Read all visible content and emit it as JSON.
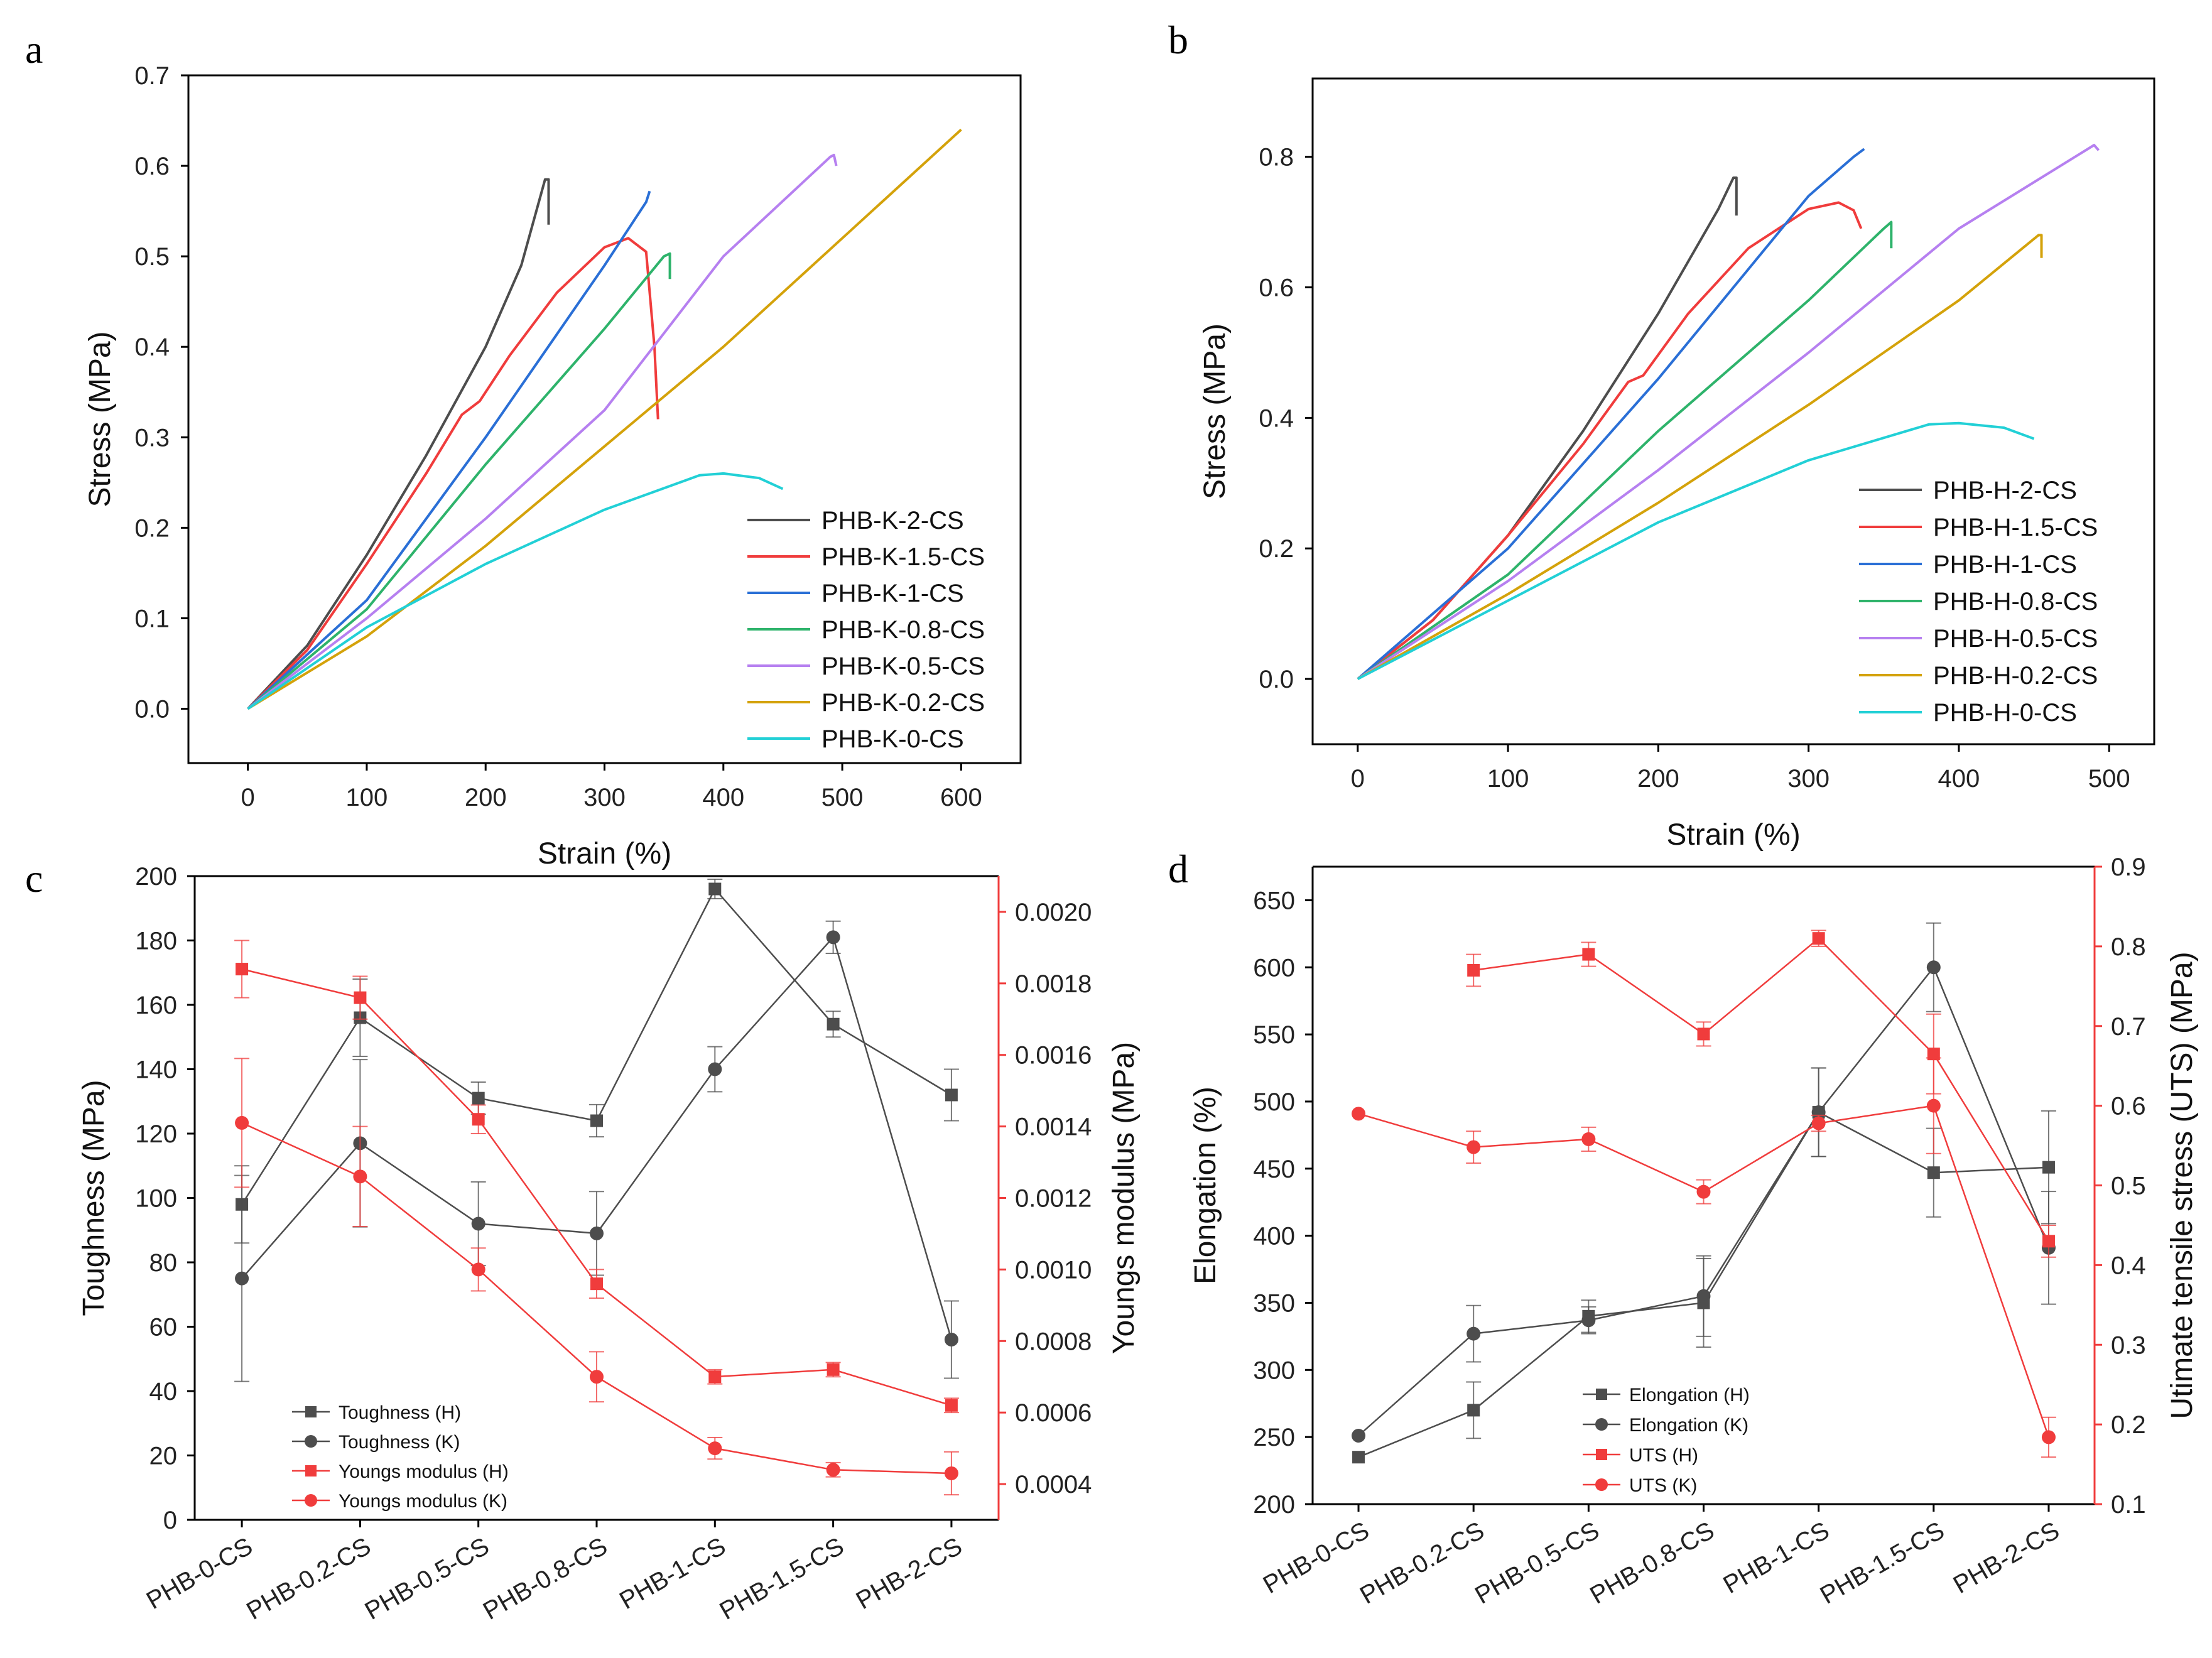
{
  "colors": {
    "black": "#4d4d4d",
    "red": "#f03c3c",
    "blue": "#2a6fd6",
    "green": "#2eb36b",
    "violet": "#b680f0",
    "gold": "#d4a20a",
    "cyan": "#22d0d6",
    "axis": "#000000",
    "right_axis": "#f03c3c"
  },
  "chart_data": [
    {
      "panel": "a",
      "type": "line",
      "title": "",
      "xlabel": "Strain (%)",
      "ylabel": "Stress (MPa)",
      "xlim": [
        -50,
        650
      ],
      "ylim": [
        -0.06,
        0.7
      ],
      "xticks": [
        0,
        100,
        200,
        300,
        400,
        500,
        600
      ],
      "yticks": [
        0.0,
        0.1,
        0.2,
        0.3,
        0.4,
        0.5,
        0.6,
        0.7
      ],
      "ytick_labels": [
        "0.0",
        "0.1",
        "0.2",
        "0.3",
        "0.4",
        "0.5",
        "0.6",
        "0.7"
      ],
      "legend_position": "bottom-right",
      "series": [
        {
          "name": "PHB-K-2-CS",
          "color": "black",
          "points": [
            [
              0,
              0
            ],
            [
              50,
              0.07
            ],
            [
              100,
              0.17
            ],
            [
              150,
              0.28
            ],
            [
              200,
              0.4
            ],
            [
              230,
              0.49
            ],
            [
              250,
              0.585
            ],
            [
              253,
              0.585
            ],
            [
              253,
              0.535
            ]
          ]
        },
        {
          "name": "PHB-K-1.5-CS",
          "color": "red",
          "points": [
            [
              0,
              0
            ],
            [
              50,
              0.065
            ],
            [
              100,
              0.16
            ],
            [
              150,
              0.26
            ],
            [
              180,
              0.325
            ],
            [
              195,
              0.34
            ],
            [
              220,
              0.39
            ],
            [
              260,
              0.46
            ],
            [
              300,
              0.51
            ],
            [
              320,
              0.52
            ],
            [
              335,
              0.505
            ],
            [
              342,
              0.4
            ],
            [
              345,
              0.32
            ]
          ]
        },
        {
          "name": "PHB-K-1-CS",
          "color": "blue",
          "points": [
            [
              0,
              0
            ],
            [
              100,
              0.12
            ],
            [
              200,
              0.3
            ],
            [
              300,
              0.49
            ],
            [
              335,
              0.56
            ],
            [
              338,
              0.572
            ]
          ]
        },
        {
          "name": "PHB-K-0.8-CS",
          "color": "green",
          "points": [
            [
              0,
              0
            ],
            [
              100,
              0.11
            ],
            [
              200,
              0.27
            ],
            [
              300,
              0.42
            ],
            [
              350,
              0.5
            ],
            [
              355,
              0.503
            ],
            [
              355,
              0.475
            ]
          ]
        },
        {
          "name": "PHB-K-0.5-CS",
          "color": "violet",
          "points": [
            [
              0,
              0
            ],
            [
              100,
              0.1
            ],
            [
              200,
              0.21
            ],
            [
              300,
              0.33
            ],
            [
              400,
              0.5
            ],
            [
              490,
              0.61
            ],
            [
              493,
              0.612
            ],
            [
              495,
              0.6
            ]
          ]
        },
        {
          "name": "PHB-K-0.2-CS",
          "color": "gold",
          "points": [
            [
              0,
              0
            ],
            [
              100,
              0.08
            ],
            [
              200,
              0.18
            ],
            [
              300,
              0.29
            ],
            [
              400,
              0.4
            ],
            [
              500,
              0.52
            ],
            [
              600,
              0.64
            ]
          ]
        },
        {
          "name": "PHB-K-0-CS",
          "color": "cyan",
          "points": [
            [
              0,
              0
            ],
            [
              100,
              0.09
            ],
            [
              200,
              0.16
            ],
            [
              300,
              0.22
            ],
            [
              380,
              0.258
            ],
            [
              400,
              0.26
            ],
            [
              430,
              0.255
            ],
            [
              450,
              0.243
            ]
          ]
        }
      ]
    },
    {
      "panel": "b",
      "type": "line",
      "title": "",
      "xlabel": "Strain (%)",
      "ylabel": "Stress (MPa)",
      "xlim": [
        -30,
        530
      ],
      "ylim": [
        -0.1,
        0.92
      ],
      "xticks": [
        0,
        100,
        200,
        300,
        400,
        500
      ],
      "yticks": [
        0.0,
        0.2,
        0.4,
        0.6,
        0.8
      ],
      "ytick_labels": [
        "0.0",
        "0.2",
        "0.4",
        "0.6",
        "0.8"
      ],
      "legend_position": "bottom-right",
      "series": [
        {
          "name": "PHB-H-2-CS",
          "color": "black",
          "points": [
            [
              0,
              0
            ],
            [
              50,
              0.09
            ],
            [
              100,
              0.22
            ],
            [
              150,
              0.38
            ],
            [
              200,
              0.56
            ],
            [
              240,
              0.72
            ],
            [
              250,
              0.768
            ],
            [
              252,
              0.768
            ],
            [
              252,
              0.71
            ]
          ]
        },
        {
          "name": "PHB-H-1.5-CS",
          "color": "red",
          "points": [
            [
              0,
              0
            ],
            [
              50,
              0.09
            ],
            [
              100,
              0.22
            ],
            [
              150,
              0.36
            ],
            [
              180,
              0.455
            ],
            [
              190,
              0.465
            ],
            [
              220,
              0.56
            ],
            [
              260,
              0.66
            ],
            [
              300,
              0.72
            ],
            [
              320,
              0.73
            ],
            [
              330,
              0.718
            ],
            [
              335,
              0.69
            ]
          ]
        },
        {
          "name": "PHB-H-1-CS",
          "color": "blue",
          "points": [
            [
              0,
              0
            ],
            [
              100,
              0.2
            ],
            [
              200,
              0.46
            ],
            [
              300,
              0.74
            ],
            [
              330,
              0.8
            ],
            [
              337,
              0.812
            ]
          ]
        },
        {
          "name": "PHB-H-0.8-CS",
          "color": "green",
          "points": [
            [
              0,
              0
            ],
            [
              100,
              0.16
            ],
            [
              200,
              0.38
            ],
            [
              300,
              0.58
            ],
            [
              350,
              0.69
            ],
            [
              355,
              0.7
            ],
            [
              355,
              0.66
            ]
          ]
        },
        {
          "name": "PHB-H-0.5-CS",
          "color": "violet",
          "points": [
            [
              0,
              0
            ],
            [
              100,
              0.15
            ],
            [
              200,
              0.32
            ],
            [
              300,
              0.5
            ],
            [
              400,
              0.69
            ],
            [
              490,
              0.818
            ],
            [
              493,
              0.81
            ]
          ]
        },
        {
          "name": "PHB-H-0.2-CS",
          "color": "gold",
          "points": [
            [
              0,
              0
            ],
            [
              100,
              0.13
            ],
            [
              200,
              0.27
            ],
            [
              300,
              0.42
            ],
            [
              400,
              0.58
            ],
            [
              453,
              0.68
            ],
            [
              455,
              0.68
            ],
            [
              455,
              0.645
            ]
          ]
        },
        {
          "name": "PHB-H-0-CS",
          "color": "cyan",
          "points": [
            [
              0,
              0
            ],
            [
              100,
              0.12
            ],
            [
              200,
              0.24
            ],
            [
              300,
              0.335
            ],
            [
              380,
              0.39
            ],
            [
              400,
              0.392
            ],
            [
              430,
              0.385
            ],
            [
              450,
              0.368
            ]
          ]
        }
      ]
    },
    {
      "panel": "c",
      "type": "line",
      "title": "",
      "xlabel": "",
      "ylabel": "Toughness (MPa)",
      "y2label": "Youngs modulus (MPa)",
      "categories": [
        "PHB-0-CS",
        "PHB-0.2-CS",
        "PHB-0.5-CS",
        "PHB-0.8-CS",
        "PHB-1-CS",
        "PHB-1.5-CS",
        "PHB-2-CS"
      ],
      "ylim": [
        0,
        200
      ],
      "yticks": [
        0,
        20,
        40,
        60,
        80,
        100,
        120,
        140,
        160,
        180,
        200
      ],
      "ytick_labels": [
        "0",
        "20",
        "40",
        "60",
        "80",
        "100",
        "120",
        "140",
        "160",
        "180",
        "200"
      ],
      "y2lim": [
        0.0003,
        0.0021
      ],
      "y2ticks": [
        0.0004,
        0.0006,
        0.0008,
        0.001,
        0.0012,
        0.0014,
        0.0016,
        0.0018,
        0.002
      ],
      "y2tick_labels": [
        "0.0004",
        "0.0006",
        "0.0008",
        "0.0010",
        "0.0012",
        "0.0014",
        "0.0016",
        "0.0018",
        "0.0020"
      ],
      "legend_position": "bottom-left",
      "series": [
        {
          "name": "Toughness (H)",
          "color": "black",
          "marker": "square",
          "axis": "left",
          "values": [
            98,
            156,
            131,
            124,
            196,
            154,
            132
          ],
          "errors": [
            12,
            12,
            5,
            5,
            3,
            4,
            8
          ]
        },
        {
          "name": "Toughness (K)",
          "color": "black",
          "marker": "circle",
          "axis": "left",
          "values": [
            75,
            117,
            92,
            89,
            140,
            181,
            56
          ],
          "errors": [
            32,
            26,
            13,
            13,
            7,
            5,
            12
          ]
        },
        {
          "name": "Youngs modulus (H)",
          "color": "red",
          "marker": "square",
          "axis": "right",
          "values": [
            0.00184,
            0.00176,
            0.00142,
            0.00096,
            0.0007,
            0.00072,
            0.00062
          ],
          "errors": [
            8e-05,
            6e-05,
            4e-05,
            4e-05,
            2e-05,
            2e-05,
            2e-05
          ]
        },
        {
          "name": "Youngs modulus (K)",
          "color": "red",
          "marker": "circle",
          "axis": "right",
          "values": [
            0.00141,
            0.00126,
            0.001,
            0.0007,
            0.0005,
            0.00044,
            0.00043
          ],
          "errors": [
            0.00018,
            0.00014,
            6e-05,
            7e-05,
            3e-05,
            2e-05,
            6e-05
          ]
        }
      ]
    },
    {
      "panel": "d",
      "type": "line",
      "title": "",
      "xlabel": "",
      "ylabel": "Elongation (%)",
      "y2label": "Utimate tensile stress (UTS) (MPa)",
      "categories": [
        "PHB-0-CS",
        "PHB-0.2-CS",
        "PHB-0.5-CS",
        "PHB-0.8-CS",
        "PHB-1-CS",
        "PHB-1.5-CS",
        "PHB-2-CS"
      ],
      "ylim": [
        200,
        675
      ],
      "yticks": [
        200,
        250,
        300,
        350,
        400,
        450,
        500,
        550,
        600,
        650
      ],
      "ytick_labels": [
        "200",
        "250",
        "300",
        "350",
        "400",
        "450",
        "500",
        "550",
        "600",
        "650"
      ],
      "y2lim": [
        0.1,
        0.9
      ],
      "y2ticks": [
        0.1,
        0.2,
        0.3,
        0.4,
        0.5,
        0.6,
        0.7,
        0.8,
        0.9
      ],
      "y2tick_labels": [
        "0.1",
        "0.2",
        "0.3",
        "0.4",
        "0.5",
        "0.6",
        "0.7",
        "0.8",
        "0.9"
      ],
      "legend_position": "bottom-center",
      "series": [
        {
          "name": "Elongation (H)",
          "color": "black",
          "marker": "square",
          "axis": "left",
          "values": [
            235,
            270,
            340,
            350,
            492,
            447,
            451
          ],
          "errors": [
            0,
            21,
            12,
            33,
            33,
            33,
            42
          ]
        },
        {
          "name": "Elongation (K)",
          "color": "black",
          "marker": "circle",
          "axis": "left",
          "values": [
            251,
            327,
            337,
            355,
            492,
            600,
            391
          ],
          "errors": [
            0,
            21,
            10,
            30,
            33,
            33,
            42
          ]
        },
        {
          "name": "UTS (H)",
          "color": "red",
          "marker": "square",
          "axis": "right",
          "values": [
            null,
            0.77,
            0.79,
            0.69,
            0.81,
            0.665,
            0.43
          ],
          "errors": [
            0,
            0.02,
            0.015,
            0.015,
            0.01,
            0.05,
            0.02
          ]
        },
        {
          "name": "UTS (K)",
          "color": "red",
          "marker": "circle",
          "axis": "right",
          "values": [
            0.59,
            0.548,
            0.558,
            0.492,
            0.578,
            0.6,
            0.184
          ],
          "errors": [
            0,
            0.02,
            0.015,
            0.015,
            0.01,
            0.06,
            0.025
          ]
        }
      ]
    }
  ]
}
